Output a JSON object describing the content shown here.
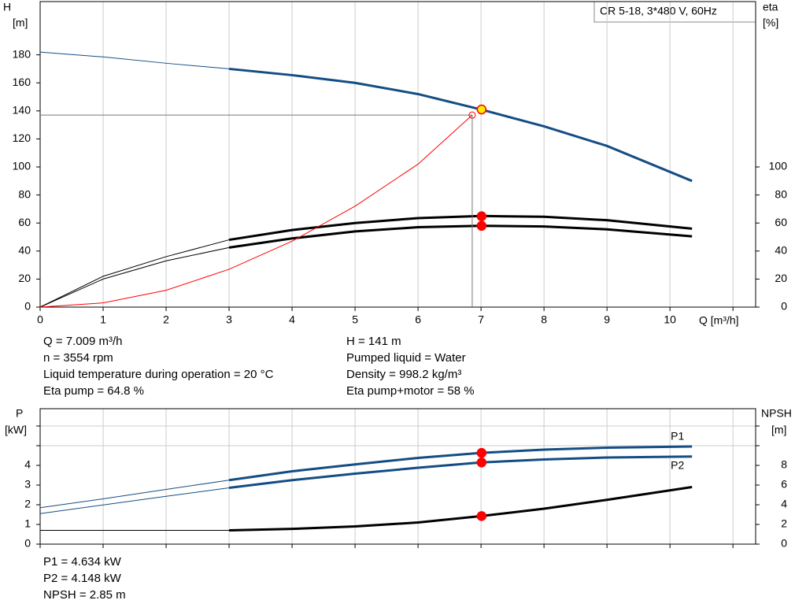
{
  "chart_data": [
    {
      "type": "line",
      "title": "CR 5-18, 3*480 V, 60Hz",
      "y_label": "H",
      "y_unit": "[m]",
      "y2_label": "eta",
      "y2_unit": "[%]",
      "x_label": "Q [m³/h]",
      "xlim": [
        0,
        11.36
      ],
      "xticks": [
        0,
        1,
        2,
        3,
        4,
        5,
        6,
        7,
        8,
        9,
        10
      ],
      "unlabeled_xticks": [
        11
      ],
      "xtick_labels": true,
      "ylim": [
        0,
        218
      ],
      "yticks": [
        0,
        20,
        40,
        60,
        80,
        100,
        120,
        140,
        160,
        180
      ],
      "y2lim": [
        0,
        218
      ],
      "y2ticks": [
        0,
        20,
        40,
        60,
        80,
        100
      ],
      "x": [
        0,
        1,
        2,
        3,
        4,
        5,
        6,
        7,
        8,
        9,
        10.35
      ],
      "bold_from_x": 3,
      "marker_x": 7.009,
      "series": [
        {
          "color": "#144d84",
          "values": [
            182,
            178.5,
            174,
            170,
            165.5,
            160,
            152,
            141,
            129,
            115,
            90
          ],
          "marker": 141,
          "marker_color": "#ffee00"
        },
        {
          "color": "#000000",
          "axis": "y2",
          "values": [
            0,
            22,
            36,
            48,
            55,
            60,
            63.5,
            65,
            64.5,
            62,
            56
          ],
          "marker": 64.8,
          "marker_color": "#ff0000"
        },
        {
          "color": "#000000",
          "axis": "y2",
          "values": [
            0,
            20,
            33,
            42.5,
            49,
            54,
            57,
            58,
            57.5,
            55.5,
            50.5
          ],
          "marker": 58,
          "marker_color": "#ff0000"
        },
        {
          "color": "#ff0000",
          "thin": true,
          "guide": true,
          "x": [
            0,
            1,
            2,
            3,
            4,
            5,
            6,
            6.86
          ],
          "values": [
            0,
            3,
            12,
            27,
            47,
            72,
            102,
            137
          ]
        }
      ],
      "info": [
        "Q = 7.009 m³/h",
        "n = 3554 rpm",
        "Liquid temperature during operation = 20 °C",
        "Eta pump = 64.8 %",
        "H = 141 m",
        "Pumped liquid = Water",
        "Density = 998.2 kg/m³",
        "Eta pump+motor = 58 %"
      ]
    },
    {
      "type": "line",
      "y_label": "P",
      "y_unit": "[kW]",
      "y2_label": "NPSH",
      "y2_unit": "[m]",
      "xlim": [
        0,
        11.36
      ],
      "xticks": [
        0,
        1,
        2,
        3,
        4,
        5,
        6,
        7,
        8,
        9,
        10
      ],
      "unlabeled_xticks": [
        11
      ],
      "xtick_labels": false,
      "ylim": [
        0,
        6.88
      ],
      "yticks": [
        0,
        1,
        2,
        3,
        4
      ],
      "unlabeled_yticks": [
        5,
        6
      ],
      "y2lim": [
        0,
        13.76
      ],
      "y2ticks": [
        0,
        2,
        4,
        6,
        8
      ],
      "unlabeled_y2ticks": [
        10,
        12
      ],
      "x": [
        0,
        1,
        2,
        3,
        4,
        5,
        6,
        7,
        8,
        9,
        10.35
      ],
      "bold_from_x": 3,
      "marker_x": 7.009,
      "series": [
        {
          "name": "P1",
          "color": "#144d84",
          "values": [
            1.85,
            2.3,
            2.78,
            3.25,
            3.7,
            4.05,
            4.38,
            4.634,
            4.8,
            4.9,
            4.96
          ],
          "marker": 4.634,
          "marker_color": "#ff0000"
        },
        {
          "name": "P2",
          "color": "#144d84",
          "values": [
            1.55,
            1.99,
            2.43,
            2.86,
            3.25,
            3.58,
            3.88,
            4.148,
            4.3,
            4.4,
            4.45
          ],
          "marker": 4.148,
          "marker_color": "#ff0000"
        },
        {
          "color": "#000000",
          "axis": "y2",
          "values": [
            1.4,
            1.4,
            1.4,
            1.4,
            1.55,
            1.8,
            2.2,
            2.85,
            3.6,
            4.5,
            5.8
          ],
          "marker": 2.85,
          "marker_color": "#ff0000"
        }
      ],
      "info": [
        "P1 = 4.634 kW",
        "P2 = 4.148 kW",
        "NPSH = 2.85 m"
      ]
    }
  ]
}
